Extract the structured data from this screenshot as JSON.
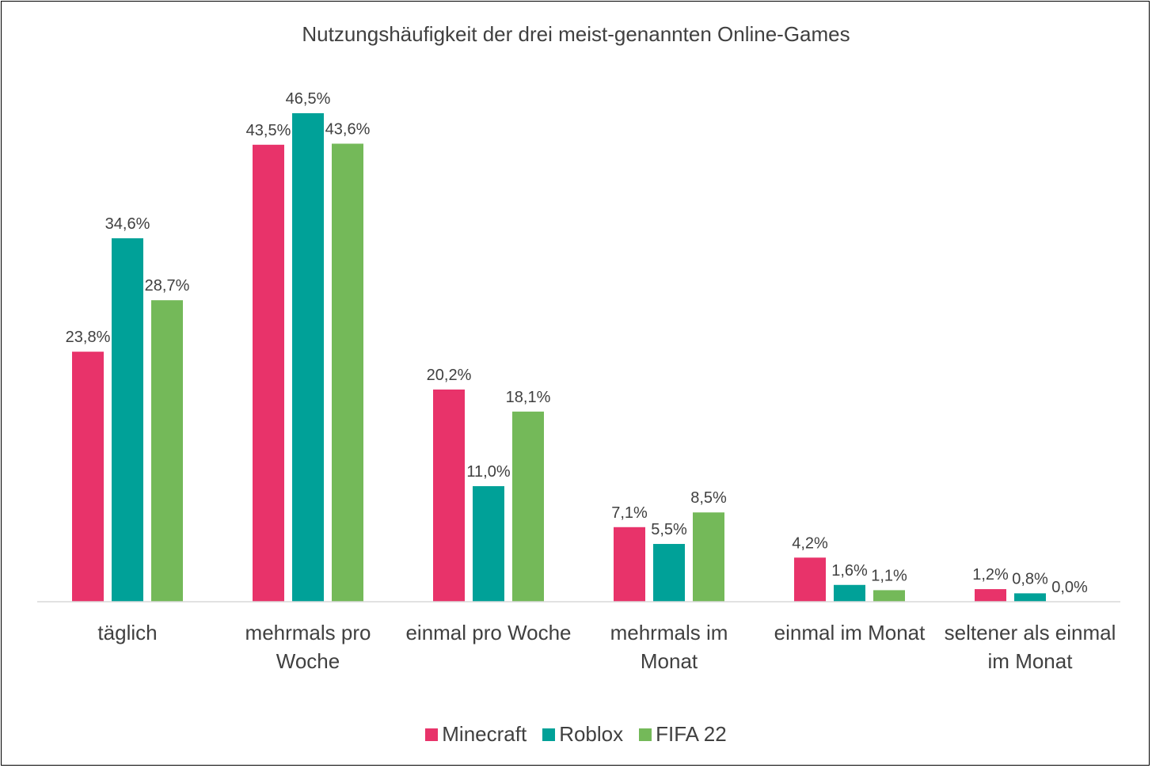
{
  "chart_data": {
    "type": "bar",
    "title": "Nutzungshäufigkeit der drei meist-genannten Online-Games",
    "categories": [
      "täglich",
      "mehrmals pro Woche",
      "einmal pro Woche",
      "mehrmals im Monat",
      "einmal im Monat",
      "seltener als einmal im Monat"
    ],
    "series": [
      {
        "name": "Minecraft",
        "color": "#e8336a",
        "values": [
          23.8,
          43.5,
          20.2,
          7.1,
          4.2,
          1.2
        ],
        "value_labels": [
          "23,8%",
          "43,5%",
          "20,2%",
          "7,1%",
          "4,2%",
          "1,2%"
        ]
      },
      {
        "name": "Roblox",
        "color": "#00a198",
        "values": [
          34.6,
          46.5,
          11.0,
          5.5,
          1.6,
          0.8
        ],
        "value_labels": [
          "34,6%",
          "46,5%",
          "11,0%",
          "5,5%",
          "1,6%",
          "0,8%"
        ]
      },
      {
        "name": "FIFA 22",
        "color": "#74b959",
        "values": [
          28.7,
          43.6,
          18.1,
          8.5,
          1.1,
          0.0
        ],
        "value_labels": [
          "28,7%",
          "43,6%",
          "18,1%",
          "8,5%",
          "1,1%",
          "0,0%"
        ]
      }
    ],
    "legend": "bottom"
  }
}
